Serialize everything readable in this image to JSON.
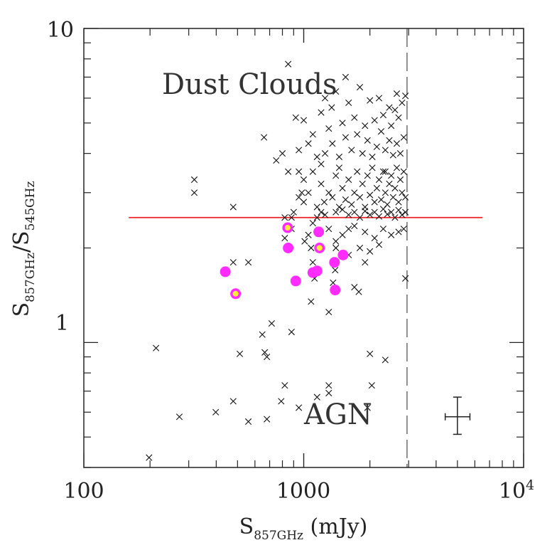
{
  "chart_data": {
    "type": "scatter",
    "x_scale": "log",
    "y_scale": "log",
    "xlim": [
      100,
      10000
    ],
    "ylim": [
      0.4,
      10
    ],
    "x_ticks": [
      {
        "value": 100,
        "label": "100"
      },
      {
        "value": 1000,
        "label": "1000"
      },
      {
        "value": 10000,
        "label": "10",
        "sup": "4"
      }
    ],
    "y_ticks": [
      {
        "value": 1,
        "label": "1"
      },
      {
        "value": 10,
        "label": "10"
      }
    ],
    "xlabel": {
      "main": "S",
      "sub": "857GHz",
      "tail": " (mJy)"
    },
    "ylabel": {
      "main1": "S",
      "sub1": "857GHz",
      "slash": "/",
      "main2": "S",
      "sub2": "545GHz"
    },
    "annotations": {
      "dust": "Dust Clouds",
      "agn": "AGN"
    },
    "grid": false,
    "colors": {
      "axis": "#222222",
      "cross": "#111111",
      "magenta": "#ff2bff",
      "yellow": "#ffee33",
      "threshold": "#ee2222",
      "flux_limit": "#555555"
    },
    "threshold_line": {
      "y": 2.5,
      "x_range": [
        160,
        6500
      ]
    },
    "flux_limit_line": {
      "x": 2950
    },
    "error_bar": {
      "x": 5000,
      "y": 0.58,
      "x_range": [
        4400,
        5700
      ],
      "y_range": [
        0.51,
        0.67
      ]
    },
    "series": [
      {
        "marker": "x",
        "points": [
          [
            198,
            0.43
          ],
          [
            213,
            0.96
          ],
          [
            272,
            0.58
          ],
          [
            318,
            3.3
          ],
          [
            318,
            3.0
          ],
          [
            398,
            0.6
          ],
          [
            478,
            0.65
          ],
          [
            478,
            2.7
          ],
          [
            478,
            1.8
          ],
          [
            512,
            0.92
          ],
          [
            560,
            0.56
          ],
          [
            560,
            1.8
          ],
          [
            648,
            1.06
          ],
          [
            665,
            0.93
          ],
          [
            680,
            0.57
          ],
          [
            680,
            0.9
          ],
          [
            715,
            1.15
          ],
          [
            790,
            0.65
          ],
          [
            820,
            0.73
          ],
          [
            820,
            2.15
          ],
          [
            820,
            2.5
          ],
          [
            850,
            7.7
          ],
          [
            880,
            1.08
          ],
          [
            660,
            4.5
          ],
          [
            750,
            3.8
          ],
          [
            800,
            4.0
          ],
          [
            850,
            3.5
          ],
          [
            880,
            2.5
          ],
          [
            880,
            2.3
          ],
          [
            900,
            2.6
          ],
          [
            920,
            5.2
          ],
          [
            950,
            0.62
          ],
          [
            950,
            3.5
          ],
          [
            980,
            3.0
          ],
          [
            1000,
            5.1
          ],
          [
            1000,
            2.8
          ],
          [
            1010,
            2.1
          ],
          [
            1050,
            2.2
          ],
          [
            1080,
            1.35
          ],
          [
            1080,
            2.0
          ],
          [
            1100,
            1.8
          ],
          [
            1100,
            2.4
          ],
          [
            1120,
            1.6
          ],
          [
            1150,
            0.67
          ],
          [
            1150,
            2.5
          ],
          [
            1200,
            2.6
          ],
          [
            1200,
            3.7
          ],
          [
            1240,
            2.8
          ],
          [
            1250,
            6.0
          ],
          [
            1300,
            1.25
          ],
          [
            1300,
            0.73
          ],
          [
            1300,
            0.69
          ],
          [
            1340,
            5.6
          ],
          [
            1360,
            1.55
          ],
          [
            1390,
            1.7
          ],
          [
            1400,
            2.1
          ],
          [
            1450,
            2.7
          ],
          [
            1550,
            7.0
          ],
          [
            1600,
            2.3
          ],
          [
            1700,
            1.5
          ],
          [
            1780,
            1.45
          ],
          [
            1900,
            1.8
          ],
          [
            1950,
            0.62
          ],
          [
            2000,
            0.92
          ],
          [
            2040,
            0.73
          ],
          [
            2350,
            0.88
          ],
          [
            2350,
            3.5
          ],
          [
            2450,
            5.6
          ],
          [
            2650,
            6.2
          ],
          [
            2900,
            6.1
          ],
          [
            2900,
            1.6
          ],
          [
            1200,
            3.2
          ],
          [
            1300,
            3.0
          ],
          [
            1350,
            2.9
          ],
          [
            1400,
            3.4
          ],
          [
            1450,
            3.6
          ],
          [
            1500,
            3.1
          ],
          [
            1550,
            2.85
          ],
          [
            1600,
            3.3
          ],
          [
            1650,
            2.75
          ],
          [
            1700,
            3.0
          ],
          [
            1750,
            3.5
          ],
          [
            1800,
            2.9
          ],
          [
            1850,
            3.2
          ],
          [
            1900,
            2.7
          ],
          [
            1950,
            3.4
          ],
          [
            2000,
            2.95
          ],
          [
            2050,
            3.6
          ],
          [
            2100,
            2.8
          ],
          [
            2150,
            3.1
          ],
          [
            2200,
            3.3
          ],
          [
            2250,
            2.85
          ],
          [
            2300,
            3.5
          ],
          [
            2350,
            3.0
          ],
          [
            2400,
            2.75
          ],
          [
            2450,
            3.2
          ],
          [
            2500,
            3.4
          ],
          [
            2550,
            2.9
          ],
          [
            2600,
            3.1
          ],
          [
            2650,
            3.6
          ],
          [
            2700,
            2.8
          ],
          [
            2750,
            3.3
          ],
          [
            2800,
            3.0
          ],
          [
            2850,
            3.5
          ],
          [
            2900,
            2.9
          ],
          [
            1250,
            4.0
          ],
          [
            1350,
            4.3
          ],
          [
            1450,
            3.9
          ],
          [
            1550,
            4.5
          ],
          [
            1650,
            4.1
          ],
          [
            1750,
            4.6
          ],
          [
            1850,
            4.0
          ],
          [
            1950,
            4.4
          ],
          [
            2050,
            3.9
          ],
          [
            2150,
            4.2
          ],
          [
            2250,
            4.7
          ],
          [
            2350,
            4.1
          ],
          [
            2450,
            4.4
          ],
          [
            2550,
            3.95
          ],
          [
            2650,
            4.3
          ],
          [
            2750,
            4.0
          ],
          [
            2850,
            4.5
          ],
          [
            1300,
            4.8
          ],
          [
            1500,
            5.0
          ],
          [
            1700,
            5.2
          ],
          [
            1900,
            4.9
          ],
          [
            2100,
            5.1
          ],
          [
            2300,
            5.3
          ],
          [
            2500,
            4.9
          ],
          [
            2700,
            5.2
          ],
          [
            1150,
            2.7
          ],
          [
            1250,
            2.55
          ],
          [
            1400,
            2.6
          ],
          [
            1500,
            2.65
          ],
          [
            1600,
            2.55
          ],
          [
            1700,
            2.6
          ],
          [
            1800,
            2.5
          ],
          [
            1900,
            2.62
          ],
          [
            2000,
            2.55
          ],
          [
            2100,
            2.6
          ],
          [
            2200,
            2.52
          ],
          [
            2300,
            2.66
          ],
          [
            2400,
            2.56
          ],
          [
            2500,
            2.6
          ],
          [
            2600,
            2.5
          ],
          [
            2700,
            2.64
          ],
          [
            2800,
            2.55
          ],
          [
            2900,
            2.6
          ],
          [
            1300,
            2.3
          ],
          [
            1500,
            2.2
          ],
          [
            1700,
            2.35
          ],
          [
            1900,
            2.25
          ],
          [
            2100,
            2.15
          ],
          [
            2300,
            2.3
          ],
          [
            2500,
            2.2
          ],
          [
            2700,
            2.25
          ],
          [
            2850,
            2.3
          ],
          [
            1600,
            1.9
          ],
          [
            1800,
            2.0
          ],
          [
            2000,
            1.95
          ],
          [
            2200,
            2.05
          ],
          [
            1400,
            2.0
          ],
          [
            1100,
            3.5
          ],
          [
            1000,
            3.3
          ],
          [
            950,
            2.9
          ],
          [
            1050,
            3.0
          ],
          [
            1150,
            3.9
          ],
          [
            1050,
            4.3
          ],
          [
            950,
            4.1
          ],
          [
            1100,
            4.6
          ],
          [
            1200,
            5.4
          ],
          [
            1400,
            6.3
          ],
          [
            1600,
            5.8
          ],
          [
            1800,
            6.5
          ],
          [
            2000,
            5.9
          ],
          [
            2200,
            6.0
          ],
          [
            2600,
            5.5
          ],
          [
            2800,
            5.8
          ]
        ]
      },
      {
        "marker": "filled-circle",
        "points": [
          [
            440,
            1.68
          ],
          [
            850,
            2.0
          ],
          [
            920,
            1.57
          ],
          [
            1100,
            1.67
          ],
          [
            1150,
            1.69
          ],
          [
            1170,
            2.25
          ],
          [
            1380,
            1.8
          ],
          [
            1510,
            1.9
          ],
          [
            1390,
            1.47
          ]
        ]
      },
      {
        "marker": "circle-yellow-center",
        "points": [
          [
            490,
            1.43
          ],
          [
            845,
            2.32
          ],
          [
            1180,
            2.0
          ]
        ]
      }
    ]
  }
}
